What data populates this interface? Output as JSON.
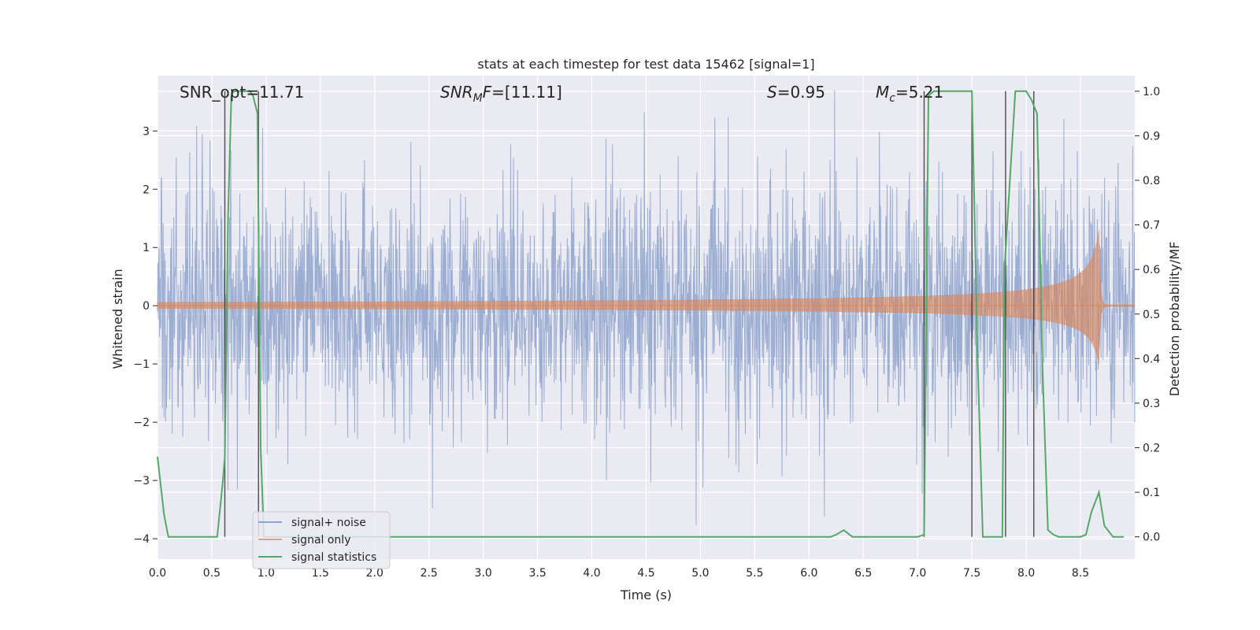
{
  "chart_data": {
    "type": "line",
    "title": "stats at each timestep for test data 15462 [signal=1]",
    "xlabel": "Time (s)",
    "ylabel": "Whitened strain",
    "y2label": "Detection probability/MF",
    "xlim": [
      0,
      9
    ],
    "ylim": [
      -4.35,
      3.95
    ],
    "y2lim": [
      -0.05,
      1.035
    ],
    "xticks": [
      "0.0",
      "0.5",
      "1.0",
      "1.5",
      "2.0",
      "2.5",
      "3.0",
      "3.5",
      "4.0",
      "4.5",
      "5.0",
      "5.5",
      "6.0",
      "6.5",
      "7.0",
      "7.5",
      "8.0",
      "8.5"
    ],
    "yticks": [
      "3",
      "2",
      "1",
      "0",
      "−1",
      "−2",
      "−3",
      "−4"
    ],
    "y2ticks": [
      "1.0",
      "0.9",
      "0.8",
      "0.7",
      "0.6",
      "0.5",
      "0.4",
      "0.3",
      "0.2",
      "0.1",
      "0.0"
    ],
    "grid": true,
    "legend": "lower-left",
    "colors": {
      "background": "#eaeaf2",
      "noise": "#8ea2cc",
      "signal": "#dd8452",
      "stats": "#55a868",
      "markers": "#333333"
    },
    "annotations": [
      {
        "label": "SNR_opt",
        "value": "=11.71"
      },
      {
        "label": "SNR",
        "subscript": "M",
        "label_suffix": "F",
        "value": "=[11.11]"
      },
      {
        "label": "S",
        "value": "=0.95"
      },
      {
        "label": "M",
        "subscript": "c",
        "value": "=5.21"
      }
    ],
    "series": [
      {
        "name": "signal+ noise",
        "kind": "noise",
        "x_range": [
          0,
          9
        ],
        "amplitude": 1.0
      },
      {
        "name": "signal only",
        "kind": "chirp",
        "x_range": [
          0,
          9
        ],
        "merger_time": 8.67,
        "peak": 1.3
      },
      {
        "name": "signal statistics",
        "kind": "line",
        "axis": "y2",
        "x": [
          0.0,
          0.06,
          0.1,
          0.2,
          0.3,
          0.4,
          0.5,
          0.55,
          0.6,
          0.62,
          0.65,
          0.68,
          0.7,
          0.75,
          0.8,
          0.85,
          0.88,
          0.92,
          0.95,
          0.98,
          1.05,
          1.5,
          2.0,
          3.0,
          4.0,
          5.0,
          6.0,
          6.2,
          6.25,
          6.32,
          6.4,
          6.5,
          7.0,
          7.06,
          7.1,
          7.15,
          7.2,
          7.3,
          7.4,
          7.5,
          7.55,
          7.6,
          7.65,
          7.7,
          7.78,
          7.8,
          7.9,
          8.0,
          8.05,
          8.1,
          8.15,
          8.2,
          8.25,
          8.3,
          8.4,
          8.5,
          8.55,
          8.6,
          8.67,
          8.72,
          8.8,
          8.9
        ],
        "y": [
          0.18,
          0.05,
          0.0,
          0.0,
          0.0,
          0.0,
          0.0,
          0.0,
          0.12,
          0.18,
          0.72,
          0.99,
          1.0,
          1.0,
          1.0,
          1.0,
          0.99,
          0.95,
          0.2,
          0.0,
          0.0,
          0.0,
          0.0,
          0.0,
          0.0,
          0.0,
          0.0,
          0.0,
          0.005,
          0.015,
          0.0,
          0.0,
          0.0,
          0.005,
          0.99,
          1.0,
          1.0,
          1.0,
          1.0,
          1.0,
          0.42,
          0.0,
          0.0,
          0.0,
          0.0,
          0.6,
          1.0,
          1.0,
          0.98,
          0.95,
          0.38,
          0.015,
          0.005,
          0.0,
          0.0,
          0.0,
          0.005,
          0.055,
          0.1,
          0.025,
          0.0,
          0.0
        ]
      }
    ],
    "vertical_markers": [
      0.62,
      0.93,
      7.06,
      7.5,
      7.81,
      8.07
    ]
  }
}
